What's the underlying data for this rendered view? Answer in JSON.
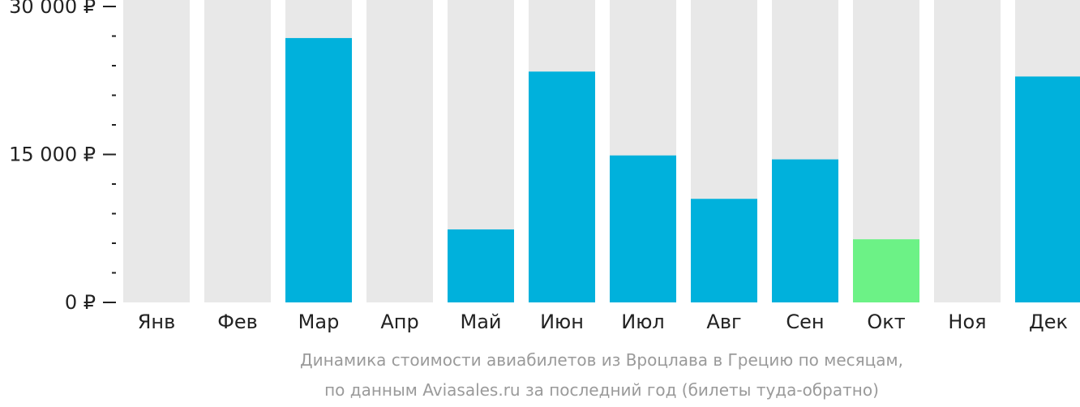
{
  "chart_data": {
    "type": "bar",
    "categories": [
      "Янв",
      "Фев",
      "Мар",
      "Апр",
      "Май",
      "Июн",
      "Июл",
      "Авг",
      "Сен",
      "Окт",
      "Ноя",
      "Дек"
    ],
    "values": [
      null,
      null,
      26800,
      null,
      7400,
      23400,
      14900,
      10500,
      14500,
      6400,
      null,
      22900
    ],
    "highlight_index": 9,
    "ylim": [
      0,
      30000
    ],
    "yticks": [
      {
        "value": 0,
        "label": "0 ₽"
      },
      {
        "value": 15000,
        "label": "15 000 ₽"
      },
      {
        "value": 30000,
        "label": "30 000 ₽"
      }
    ],
    "minor_tick_step": 3000,
    "caption_line1": "Динамика стоимости авиабилетов из Вроцлава в Грецию по месяцам,",
    "caption_line2": "по данным Aviasales.ru за последний год (билеты туда-обратно)",
    "colors": {
      "bar": "#00b1dc",
      "highlight": "#6cf286",
      "background_bar": "#e8e8e8",
      "axis": "#222222",
      "text": "#222222",
      "caption": "#9a9a9a"
    },
    "grid": false,
    "legend": "none"
  }
}
